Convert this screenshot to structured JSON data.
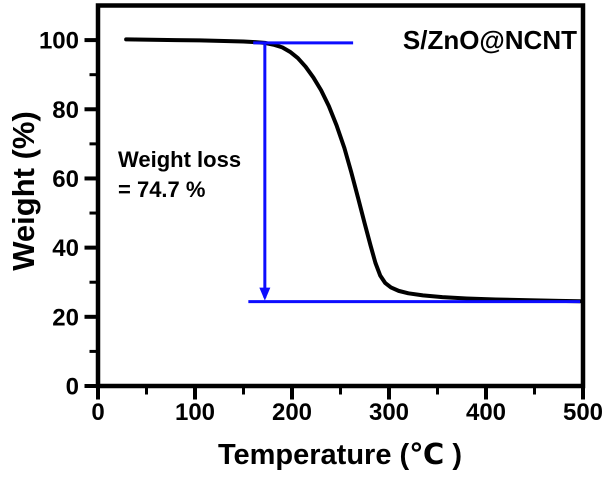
{
  "chart_data": {
    "type": "line",
    "sample_label": "S/ZnO@NCNT",
    "xlabel": "Temperature (℃ )",
    "ylabel": "Weight (%)",
    "xlim": [
      0,
      500
    ],
    "ylim": [
      0,
      110
    ],
    "x_major_ticks": [
      0,
      100,
      200,
      300,
      400,
      500
    ],
    "x_minor_ticks": [
      50,
      150,
      250,
      350,
      450
    ],
    "y_major_ticks": [
      0,
      20,
      40,
      60,
      80,
      100
    ],
    "y_minor_ticks": [
      10,
      30,
      50,
      70,
      90
    ],
    "grid": false,
    "background_color": "#ffffff",
    "axis_color": "#000000",
    "series": [
      {
        "name": "S/ZnO@NCNT",
        "color": "#000000",
        "points": [
          [
            29,
            100.2
          ],
          [
            55,
            100.1
          ],
          [
            80,
            100.0
          ],
          [
            105,
            99.9
          ],
          [
            130,
            99.75
          ],
          [
            150,
            99.6
          ],
          [
            162,
            99.4
          ],
          [
            172,
            99.2
          ],
          [
            182,
            98.6
          ],
          [
            190,
            97.9
          ],
          [
            198,
            96.6
          ],
          [
            206,
            94.8
          ],
          [
            214,
            92.3
          ],
          [
            222,
            89.2
          ],
          [
            230,
            85.5
          ],
          [
            238,
            80.9
          ],
          [
            246,
            75.3
          ],
          [
            254,
            68.8
          ],
          [
            261,
            61.9
          ],
          [
            268,
            54.5
          ],
          [
            275,
            46.9
          ],
          [
            281,
            40.6
          ],
          [
            286,
            35.6
          ],
          [
            291,
            31.9
          ],
          [
            296,
            29.8
          ],
          [
            302,
            28.5
          ],
          [
            310,
            27.5
          ],
          [
            320,
            26.8
          ],
          [
            335,
            26.2
          ],
          [
            355,
            25.7
          ],
          [
            380,
            25.3
          ],
          [
            410,
            25.0
          ],
          [
            445,
            24.8
          ],
          [
            475,
            24.6
          ],
          [
            497,
            24.5
          ]
        ]
      }
    ],
    "annotation": {
      "text_line1": "Weight loss",
      "text_line2": "= 74.7 %",
      "color": "#0d0dff",
      "top_line": {
        "y": 99.2,
        "x1": 160,
        "x2": 263
      },
      "bottom_line": {
        "y": 24.4,
        "x1": 155,
        "x2": 497
      },
      "arrow": {
        "x": 172,
        "y1": 99.2,
        "y2": 24.4
      }
    }
  }
}
